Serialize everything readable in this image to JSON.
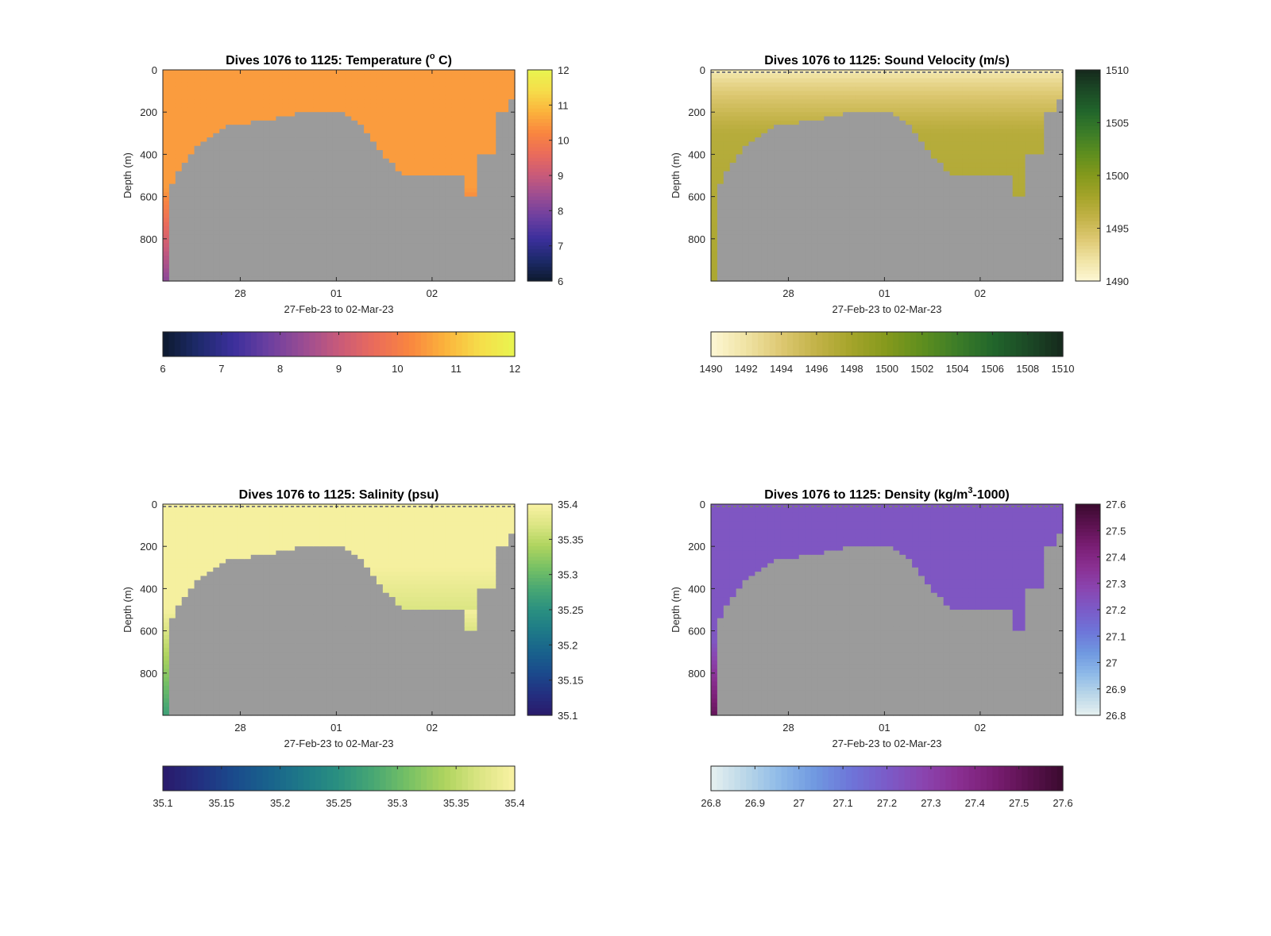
{
  "chart_data": [
    {
      "type": "heatmap",
      "variable": "temperature",
      "title": "Dives 1076 to 1125: Temperature (° C)",
      "title_main": "Dives 1076 to 1125: Temperature (",
      "title_sup": "o",
      "title_end": " C)",
      "xlabel": "27-Feb-23 to 02-Mar-23",
      "ylabel": "Depth (m)",
      "yticks": [
        "0",
        "200",
        "400",
        "600",
        "800"
      ],
      "xticks": [
        "28",
        "01",
        "02"
      ],
      "ylim": [
        0,
        1000
      ],
      "clim": [
        6,
        12
      ],
      "colorbar_ticks": [
        "6",
        "7",
        "8",
        "9",
        "10",
        "11",
        "12"
      ],
      "colormap": [
        "#0d1a2e",
        "#1d2a6b",
        "#3b2f9c",
        "#6b3fa0",
        "#9a4c93",
        "#c85a7a",
        "#ea6b5b",
        "#f9853f",
        "#fbb23c",
        "#f6dd4a",
        "#e8f54f"
      ],
      "water_column": {
        "surface_value": 10.5,
        "gradient_from_depth_m": 560,
        "bottom_value": 8.2
      },
      "mask_color": "#9b9b9b",
      "surface_line": false
    },
    {
      "type": "heatmap",
      "variable": "sound_velocity",
      "title": "Dives 1076 to 1125: Sound Velocity (m/s)",
      "title_main": "Dives 1076 to 1125: Sound Velocity (m/s)",
      "xlabel": "27-Feb-23 to 02-Mar-23",
      "ylabel": "Depth (m)",
      "yticks": [
        "0",
        "200",
        "400",
        "600",
        "800"
      ],
      "xticks": [
        "28",
        "01",
        "02"
      ],
      "ylim": [
        0,
        1000
      ],
      "clim": [
        1490,
        1510
      ],
      "colorbar_ticks": [
        "1490",
        "1495",
        "1500",
        "1505",
        "1510"
      ],
      "colorbar_ticks_h": [
        "1490",
        "1492",
        "1494",
        "1496",
        "1498",
        "1500",
        "1502",
        "1504",
        "1506",
        "1508",
        "1510"
      ],
      "colormap": [
        "#fdf7d4",
        "#f0e3a4",
        "#ddc872",
        "#c2b247",
        "#a4a42a",
        "#84991c",
        "#5f8e1e",
        "#3c7d28",
        "#22662b",
        "#1b4a26",
        "#16281c"
      ],
      "water_column": {
        "surface_value": 1491,
        "mid_value": 1496.8,
        "mid_depth_m": 300,
        "bottom_value": 1497.5
      },
      "mask_color": "#9b9b9b",
      "surface_line": true
    },
    {
      "type": "heatmap",
      "variable": "salinity",
      "title": "Dives 1076 to 1125: Salinity (psu)",
      "title_main": "Dives 1076 to 1125: Salinity (psu)",
      "xlabel": "27-Feb-23 to 02-Mar-23",
      "ylabel": "Depth (m)",
      "yticks": [
        "0",
        "200",
        "400",
        "600",
        "800"
      ],
      "xticks": [
        "28",
        "01",
        "02"
      ],
      "ylim": [
        0,
        1000
      ],
      "clim": [
        35.1,
        35.4
      ],
      "colorbar_ticks": [
        "35.1",
        "35.15",
        "35.2",
        "35.25",
        "35.3",
        "35.35",
        "35.4"
      ],
      "colormap": [
        "#2a1a6b",
        "#232f80",
        "#1a4a8c",
        "#19628c",
        "#1e7a88",
        "#2a9080",
        "#49a873",
        "#78c164",
        "#aed45e",
        "#dbe583",
        "#faf2a4"
      ],
      "water_column": {
        "surface_value": 35.395,
        "gradient_from_depth_m": 500,
        "bottom_value": 35.27
      },
      "mask_color": "#9b9b9b",
      "surface_line": true
    },
    {
      "type": "heatmap",
      "variable": "density",
      "title": "Dives 1076 to 1125: Density (kg/m3-1000)",
      "title_main": "Dives 1076 to 1125: Density (kg/m",
      "title_sup": "3",
      "title_end": "-1000)",
      "xlabel": "27-Feb-23 to 02-Mar-23",
      "ylabel": "Depth (m)",
      "yticks": [
        "0",
        "200",
        "400",
        "600",
        "800"
      ],
      "xticks": [
        "28",
        "01",
        "02"
      ],
      "ylim": [
        0,
        1000
      ],
      "clim": [
        26.8,
        27.6
      ],
      "colorbar_ticks": [
        "26.8",
        "26.9",
        "27",
        "27.1",
        "27.2",
        "27.3",
        "27.4",
        "27.5",
        "27.6"
      ],
      "colormap": [
        "#e6f0f0",
        "#b9d6e8",
        "#8cb8e8",
        "#6f97e0",
        "#6e74d8",
        "#7b5bc8",
        "#8a45b0",
        "#8a3093",
        "#7a1e74",
        "#5c1250",
        "#3a0a2e"
      ],
      "water_column": {
        "surface_value": 27.22,
        "gradient_from_depth_m": 650,
        "bottom_value": 27.5
      },
      "mask_color": "#9b9b9b",
      "surface_line": true
    }
  ],
  "dive_bottom_profile_depth_m": [
    1000,
    530,
    470,
    440,
    400,
    360,
    330,
    310,
    290,
    270,
    255,
    250,
    250,
    250,
    248,
    245,
    240,
    230,
    225,
    215,
    210,
    205,
    200,
    198,
    197,
    197,
    197,
    198,
    200,
    210,
    230,
    260,
    290,
    330,
    370,
    410,
    440,
    470,
    500,
    500,
    502,
    500,
    501,
    500,
    502,
    500,
    501,
    500,
    600,
    600,
    400,
    400,
    400,
    200,
    200,
    130
  ]
}
